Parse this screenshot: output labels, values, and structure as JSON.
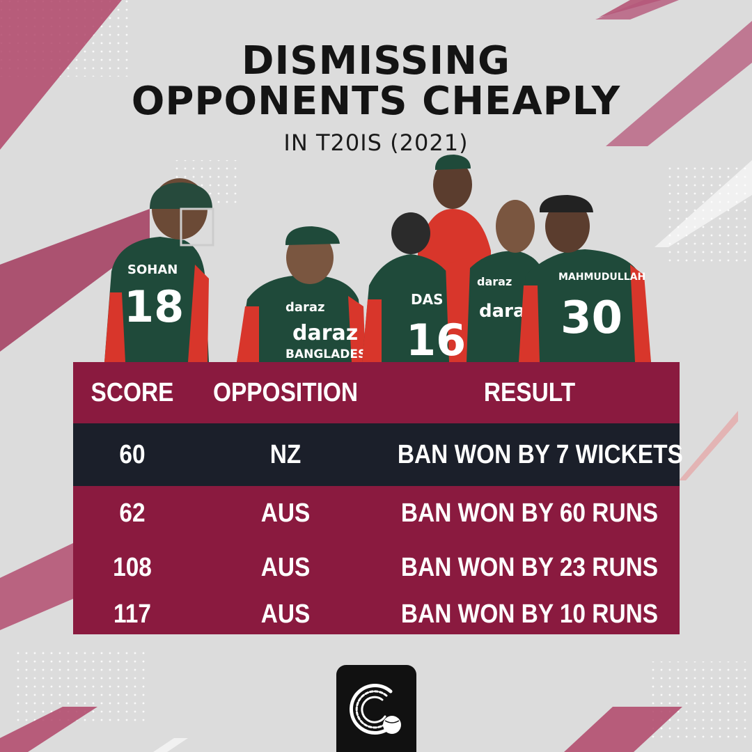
{
  "title_line1": "DISMISSING",
  "title_line2": "OPPONENTS CHEAPLY",
  "subtitle": "IN T20IS (2021)",
  "colors": {
    "background": "#dcdcdc",
    "accent": "#8a1a3f",
    "highlight_row": "#1b1f2a",
    "jersey_green": "#1f4a3a",
    "jersey_red": "#d8362b"
  },
  "players": [
    {
      "jersey_name": "SOHAN",
      "number": "18"
    },
    {
      "jersey_name": "",
      "number": ""
    },
    {
      "jersey_name": "DAS",
      "number": "16"
    },
    {
      "jersey_name": "MAHMUDULLAH",
      "number": "30"
    }
  ],
  "jersey_texts": {
    "sponsor": "daraz",
    "country": "BANGLADESH",
    "country_short": "BANGLADESH"
  },
  "table": {
    "headers": {
      "score": "SCORE",
      "opposition": "OPPOSITION",
      "result": "RESULT"
    },
    "rows": [
      {
        "score": "60",
        "opposition": "NZ",
        "result": "BAN WON BY 7 WICKETS"
      },
      {
        "score": "62",
        "opposition": "AUS",
        "result": "BAN WON BY 60 RUNS"
      },
      {
        "score": "108",
        "opposition": "AUS",
        "result": "BAN WON BY 23 RUNS"
      },
      {
        "score": "117",
        "opposition": "AUS",
        "result": "BAN WON BY 10 RUNS"
      }
    ]
  },
  "logo_icon": "cricket-ball-logo-icon"
}
